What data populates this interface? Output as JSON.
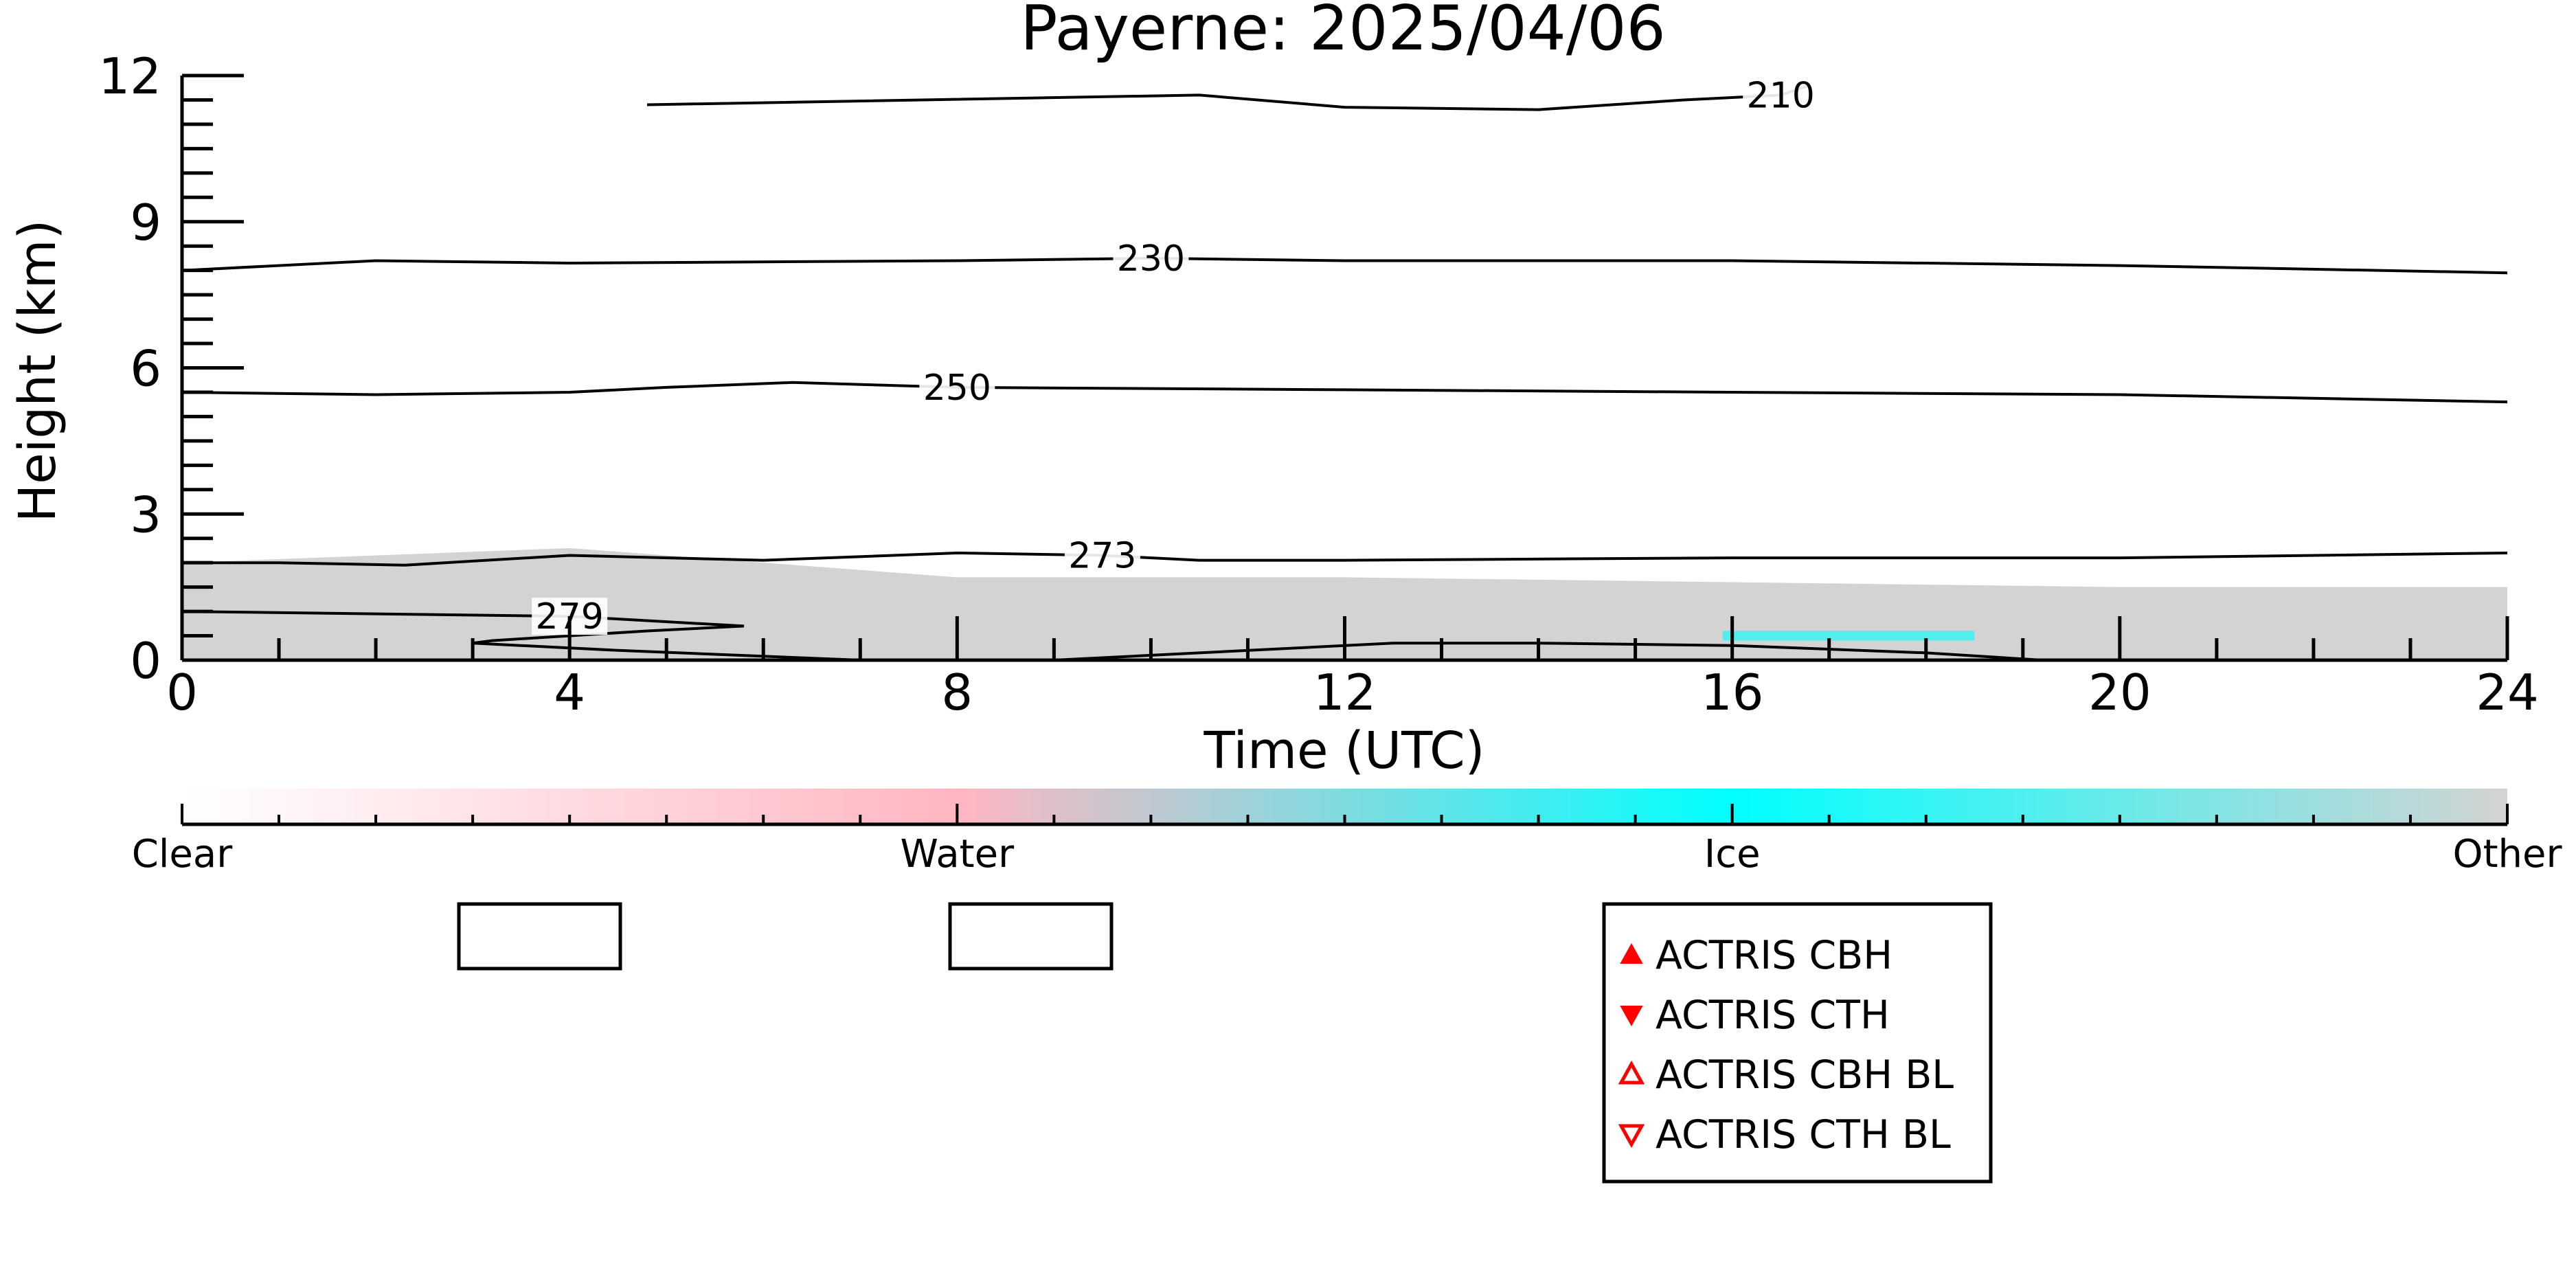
{
  "chart_data": {
    "type": "heatmap",
    "title": "Payerne: 2025/04/06",
    "xlabel": "Time (UTC)",
    "ylabel": "Height (km)",
    "xlim": [
      0,
      24
    ],
    "ylim": [
      0,
      12
    ],
    "xticks": [
      0,
      4,
      8,
      12,
      16,
      20,
      24
    ],
    "xtick_labels": [
      "0",
      "4",
      "8",
      "12",
      "16",
      "20",
      "24"
    ],
    "yticks": [
      0,
      3,
      6,
      9,
      12
    ],
    "ytick_labels": [
      "0",
      "3",
      "6",
      "9",
      "12"
    ],
    "colorbar": {
      "categories": [
        "Clear",
        "Water",
        "Ice",
        "Other"
      ],
      "colors": [
        "#ffffff",
        "#ffb6c1",
        "#00ffff",
        "#d3d3d3"
      ]
    },
    "fields": [
      {
        "category": "Other",
        "color": "#d3d3d3",
        "x_range": [
          0,
          24
        ],
        "top_km": [
          2.0,
          2.3,
          1.7,
          1.7,
          1.6,
          1.5,
          1.5
        ]
      },
      {
        "category": "Ice",
        "color": "#00ffff",
        "x_range": [
          15.9,
          18.5
        ],
        "height_km": [
          0.4,
          0.6
        ]
      }
    ],
    "contours": [
      {
        "label": "210",
        "x": [
          4.8,
          10.5,
          12,
          14,
          15.5,
          16.5,
          16.8
        ],
        "y": [
          11.4,
          11.6,
          11.35,
          11.3,
          11.5,
          11.6,
          11.8
        ]
      },
      {
        "label": "230",
        "x": [
          0,
          2,
          4,
          8,
          10,
          12,
          16,
          20,
          24
        ],
        "y": [
          8.0,
          8.2,
          8.15,
          8.2,
          8.25,
          8.2,
          8.2,
          8.1,
          7.95
        ]
      },
      {
        "label": "250",
        "x": [
          0,
          2,
          4,
          5,
          6.3,
          8,
          12,
          16,
          20,
          24
        ],
        "y": [
          5.5,
          5.45,
          5.5,
          5.6,
          5.7,
          5.6,
          5.55,
          5.5,
          5.45,
          5.3
        ]
      },
      {
        "label": "273",
        "x": [
          0,
          1,
          2.3,
          4,
          6,
          8,
          9.5,
          10.5,
          12,
          16,
          20,
          24
        ],
        "y": [
          2.0,
          2.0,
          1.95,
          2.15,
          2.05,
          2.2,
          2.15,
          2.05,
          2.05,
          2.1,
          2.1,
          2.2
        ]
      },
      {
        "label": "279",
        "x": [
          0,
          2,
          4,
          5.8,
          4.8,
          3.2,
          3,
          4.5,
          7,
          9,
          10.5,
          12.5,
          14,
          16,
          18,
          19.2
        ],
        "y": [
          1.0,
          0.95,
          0.9,
          0.7,
          0.6,
          0.4,
          0.35,
          0.2,
          0.0,
          0.0,
          0.15,
          0.35,
          0.35,
          0.3,
          0.15,
          0.0
        ]
      }
    ],
    "legend": {
      "placement": "bottom-center",
      "entries": [
        {
          "label": "ACTRIS CBH",
          "marker": "triangle-up-filled",
          "color": "#ff0000"
        },
        {
          "label": "ACTRIS CTH",
          "marker": "triangle-down-filled",
          "color": "#ff0000"
        },
        {
          "label": "ACTRIS CBH BL",
          "marker": "triangle-up-open",
          "color": "#ff0000"
        },
        {
          "label": "ACTRIS CTH BL",
          "marker": "triangle-down-open",
          "color": "#ff0000"
        }
      ]
    },
    "grid": false
  }
}
